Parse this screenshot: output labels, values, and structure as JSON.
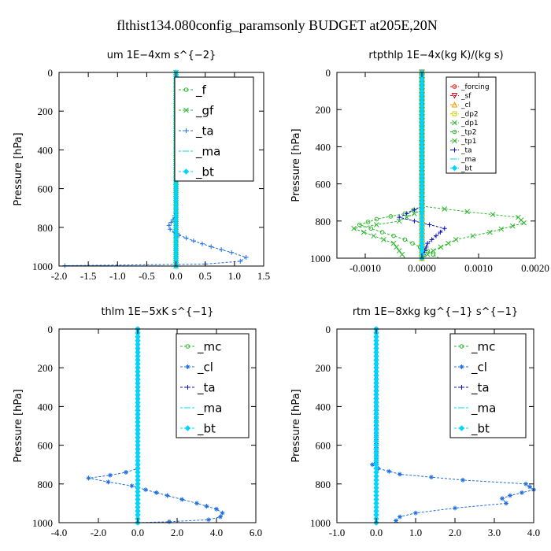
{
  "figure_title": "flthist134.080config_paramsonly  BUDGET at205E,20N",
  "colors": {
    "green": "#2eb82e",
    "blue": "#1f6fe0",
    "navy": "#1010c0",
    "cyan": "#00d5ff",
    "red": "#e01010",
    "orange": "#e8a000",
    "yellow": "#c8d400"
  },
  "chart_data": [
    {
      "type": "line",
      "title": "um   1E−4xm s^{−2}",
      "ylabel": "Pressure [hPa]",
      "xlim": [
        -2.0,
        1.5
      ],
      "ylim": [
        1000,
        0
      ],
      "xticks": [
        "-2.0",
        "-1.5",
        "-1.0",
        "-0.5",
        "0.0",
        "0.5",
        "1.0",
        "1.5"
      ],
      "xtick_values": [
        -2.0,
        -1.5,
        -1.0,
        -0.5,
        0.0,
        0.5,
        1.0,
        1.5
      ],
      "yticks": [
        "0",
        "200",
        "400",
        "600",
        "800",
        "1000"
      ],
      "ytick_values": [
        0,
        200,
        400,
        600,
        800,
        1000
      ],
      "legend": [
        "_f",
        "_gf",
        "_ta",
        "_ma",
        "_bt"
      ],
      "series": [
        {
          "name": "_f",
          "color": "green",
          "marker": "o",
          "points": [
            [
              0,
              0
            ],
            [
              0,
              1000
            ]
          ]
        },
        {
          "name": "_gf",
          "color": "green",
          "marker": "x",
          "points": [
            [
              0,
              0
            ],
            [
              0,
              1000
            ]
          ]
        },
        {
          "name": "_ta",
          "color": "blue",
          "marker": "+",
          "points": [
            [
              0,
              0
            ],
            [
              0,
              720
            ],
            [
              -0.05,
              760
            ],
            [
              -0.12,
              790
            ],
            [
              -0.1,
              810
            ],
            [
              0.05,
              840
            ],
            [
              0.3,
              870
            ],
            [
              0.6,
              900
            ],
            [
              0.95,
              930
            ],
            [
              1.2,
              955
            ],
            [
              1.1,
              975
            ],
            [
              0.5,
              990
            ],
            [
              -1.9,
              998
            ],
            [
              0,
              1000
            ]
          ]
        },
        {
          "name": "_ma",
          "color": "cyan",
          "marker": "-",
          "points": [
            [
              0,
              0
            ],
            [
              0,
              1000
            ]
          ]
        },
        {
          "name": "_bt",
          "color": "cyan",
          "marker": "d",
          "points": [
            [
              0,
              0
            ],
            [
              0,
              1000
            ]
          ]
        }
      ]
    },
    {
      "type": "line",
      "title": "rtpthlp   1E−4x(kg K)/(kg s)",
      "ylabel": "Pressure [hPa]",
      "xlim": [
        -0.0015,
        0.002
      ],
      "ylim": [
        1000,
        0
      ],
      "xticks": [
        "-0.0010",
        "0.0000",
        "0.0010",
        "0.0020"
      ],
      "xtick_values": [
        -0.001,
        0.0,
        0.001,
        0.002
      ],
      "yticks": [
        "0",
        "200",
        "400",
        "600",
        "800",
        "1000"
      ],
      "ytick_values": [
        0,
        200,
        400,
        600,
        800,
        1000
      ],
      "legend": [
        "_forcing",
        "_sf",
        "_cl",
        "_dp2",
        "_dp1",
        "_tp2",
        "_tp1",
        "_ta",
        "_ma",
        "_bt"
      ],
      "series": [
        {
          "name": "_forcing",
          "color": "red",
          "marker": "o",
          "points": [
            [
              0,
              0
            ],
            [
              0,
              1000
            ]
          ]
        },
        {
          "name": "_sf",
          "color": "red",
          "marker": "v",
          "points": [
            [
              0,
              0
            ],
            [
              0,
              1000
            ]
          ]
        },
        {
          "name": "_cl",
          "color": "orange",
          "marker": "^",
          "points": [
            [
              0,
              0
            ],
            [
              0,
              1000
            ]
          ]
        },
        {
          "name": "_dp2",
          "color": "yellow",
          "marker": "s",
          "points": [
            [
              0,
              0
            ],
            [
              0,
              1000
            ]
          ]
        },
        {
          "name": "_dp1",
          "color": "green",
          "marker": "x",
          "points": [
            [
              0,
              0
            ],
            [
              0,
              720
            ],
            [
              0.0008,
              750
            ],
            [
              0.0017,
              780
            ],
            [
              0.0018,
              810
            ],
            [
              0.0012,
              860
            ],
            [
              0.0006,
              900
            ],
            [
              0.0002,
              960
            ],
            [
              0,
              1000
            ]
          ]
        },
        {
          "name": "_tp2",
          "color": "green",
          "marker": "o",
          "points": [
            [
              0,
              0
            ],
            [
              0,
              720
            ],
            [
              -0.0003,
              760
            ],
            [
              -0.0008,
              790
            ],
            [
              -0.0011,
              820
            ],
            [
              -0.0007,
              860
            ],
            [
              -0.0003,
              900
            ],
            [
              0.0001,
              960
            ],
            [
              0.0003,
              1000
            ]
          ]
        },
        {
          "name": "_tp1",
          "color": "green",
          "marker": "x",
          "points": [
            [
              0,
              0
            ],
            [
              0,
              740
            ],
            [
              -0.0004,
              800
            ],
            [
              -0.0012,
              840
            ],
            [
              -0.0005,
              920
            ],
            [
              -0.0003,
              1000
            ]
          ]
        },
        {
          "name": "_ta",
          "color": "navy",
          "marker": "+",
          "points": [
            [
              0,
              0
            ],
            [
              0,
              720
            ],
            [
              -0.0004,
              780
            ],
            [
              0.0004,
              840
            ],
            [
              0.0001,
              920
            ],
            [
              0,
              1000
            ]
          ]
        },
        {
          "name": "_ma",
          "color": "cyan",
          "marker": "-",
          "points": [
            [
              0,
              0
            ],
            [
              0,
              1000
            ]
          ]
        },
        {
          "name": "_bt",
          "color": "cyan",
          "marker": "d",
          "points": [
            [
              0,
              0
            ],
            [
              0,
              1000
            ]
          ]
        }
      ]
    },
    {
      "type": "line",
      "title": "thlm   1E−5xK s^{−1}",
      "ylabel": "Pressure [hPa]",
      "xlim": [
        -4.0,
        6.0
      ],
      "ylim": [
        1000,
        0
      ],
      "xticks": [
        "-4.0",
        "-2.0",
        "0.0",
        "2.0",
        "4.0",
        "6.0"
      ],
      "xtick_values": [
        -4.0,
        -2.0,
        0.0,
        2.0,
        4.0,
        6.0
      ],
      "yticks": [
        "0",
        "200",
        "400",
        "600",
        "800",
        "1000"
      ],
      "ytick_values": [
        0,
        200,
        400,
        600,
        800,
        1000
      ],
      "legend": [
        "_mc",
        "_cl",
        "_ta",
        "_ma",
        "_bt"
      ],
      "series": [
        {
          "name": "_mc",
          "color": "green",
          "marker": "o",
          "points": [
            [
              0,
              0
            ],
            [
              0,
              1000
            ]
          ]
        },
        {
          "name": "_cl",
          "color": "blue",
          "marker": "*",
          "points": [
            [
              0,
              0
            ],
            [
              0,
              720
            ],
            [
              -0.6,
              740
            ],
            [
              -1.4,
              755
            ],
            [
              -2.5,
              770
            ],
            [
              -1.5,
              790
            ],
            [
              -0.3,
              810
            ],
            [
              0.4,
              830
            ],
            [
              1.5,
              860
            ],
            [
              3.0,
              900
            ],
            [
              4.0,
              930
            ],
            [
              4.3,
              950
            ],
            [
              4.2,
              970
            ],
            [
              3.6,
              985
            ],
            [
              1.6,
              995
            ],
            [
              0,
              1000
            ]
          ]
        },
        {
          "name": "_ta",
          "color": "navy",
          "marker": "+",
          "points": [
            [
              0,
              0
            ],
            [
              0,
              1000
            ]
          ]
        },
        {
          "name": "_ma",
          "color": "cyan",
          "marker": "-",
          "points": [
            [
              0,
              0
            ],
            [
              0,
              1000
            ]
          ]
        },
        {
          "name": "_bt",
          "color": "cyan",
          "marker": "d",
          "points": [
            [
              0,
              0
            ],
            [
              0,
              1000
            ]
          ]
        }
      ]
    },
    {
      "type": "line",
      "title": "rtm   1E−8xkg kg^{−1} s^{−1}",
      "ylabel": "Pressure [hPa]",
      "xlim": [
        -1.0,
        4.0
      ],
      "ylim": [
        1000,
        0
      ],
      "xticks": [
        "-1.0",
        "0.0",
        "1.0",
        "2.0",
        "3.0",
        "4.0"
      ],
      "xtick_values": [
        -1.0,
        0.0,
        1.0,
        2.0,
        3.0,
        4.0
      ],
      "yticks": [
        "0",
        "200",
        "400",
        "600",
        "800",
        "1000"
      ],
      "ytick_values": [
        0,
        200,
        400,
        600,
        800,
        1000
      ],
      "legend": [
        "_mc",
        "_cl",
        "_ta",
        "_ma",
        "_bt"
      ],
      "series": [
        {
          "name": "_mc",
          "color": "green",
          "marker": "o",
          "points": [
            [
              0,
              0
            ],
            [
              0,
              1000
            ]
          ]
        },
        {
          "name": "_cl",
          "color": "blue",
          "marker": "*",
          "points": [
            [
              0,
              0
            ],
            [
              0,
              690
            ],
            [
              -0.1,
              700
            ],
            [
              0.05,
              720
            ],
            [
              0.6,
              750
            ],
            [
              2.2,
              780
            ],
            [
              3.8,
              800
            ],
            [
              4.0,
              830
            ],
            [
              3.4,
              860
            ],
            [
              3.2,
              875
            ],
            [
              3.3,
              900
            ],
            [
              2.0,
              925
            ],
            [
              1.0,
              950
            ],
            [
              0.6,
              970
            ],
            [
              0.5,
              990
            ],
            [
              0.55,
              1000
            ]
          ]
        },
        {
          "name": "_ta",
          "color": "navy",
          "marker": "+",
          "points": [
            [
              0,
              0
            ],
            [
              0,
              1000
            ]
          ]
        },
        {
          "name": "_ma",
          "color": "cyan",
          "marker": "-",
          "points": [
            [
              0,
              0
            ],
            [
              0,
              1000
            ]
          ]
        },
        {
          "name": "_bt",
          "color": "cyan",
          "marker": "d",
          "points": [
            [
              0,
              0
            ],
            [
              0,
              1000
            ]
          ]
        }
      ]
    }
  ]
}
